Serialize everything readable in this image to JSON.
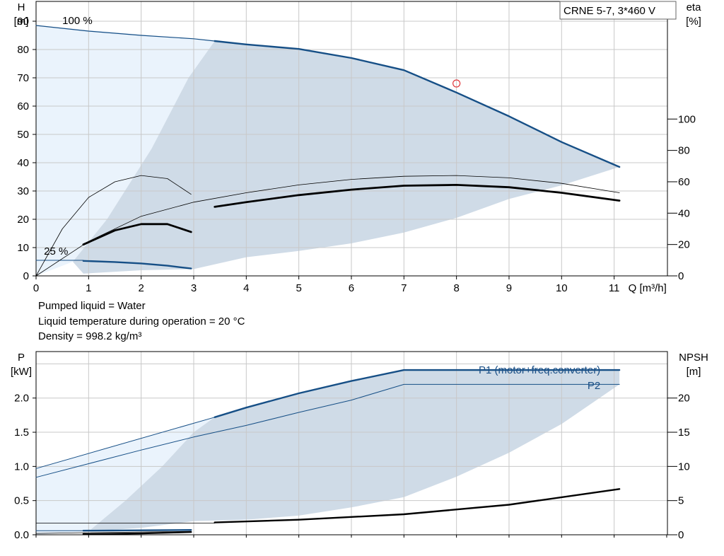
{
  "colors": {
    "area_light": "#eaf3fc",
    "area_mid": "#cfdbe7",
    "curve_blue": "#164f86",
    "grid": "#c8c8c8",
    "label_blue": "#1a4f86",
    "marker_red": "#e0383c"
  },
  "legend_box": {
    "text": "CRNE 5-7, 3*460 V"
  },
  "info_lines": [
    "Pumped liquid = Water",
    "Liquid temperature during operation = 20 °C",
    "Density = 998.2 kg/m³"
  ],
  "chart_data": [
    {
      "type": "line",
      "chart_id": "head_efficiency",
      "xlabel": "Q [m³/h]",
      "ylabel": "H\n[m]",
      "y2label": "eta\n[%]",
      "xlim": [
        0,
        12
      ],
      "ylim": [
        0,
        97
      ],
      "y2lim": [
        0,
        175
      ],
      "x_ticks": [
        0,
        1,
        2,
        3,
        4,
        5,
        6,
        7,
        8,
        9,
        10,
        11
      ],
      "y_ticks": [
        0,
        10,
        20,
        30,
        40,
        50,
        60,
        70,
        80,
        90
      ],
      "y2_ticks": [
        0,
        20,
        40,
        60,
        80,
        100
      ],
      "grid": true,
      "annotations": [
        {
          "text": "100 %",
          "x": 0.5,
          "y": 89
        },
        {
          "text": "25 %",
          "x": 0.15,
          "y": 7.5
        }
      ],
      "duty_point": {
        "x": 8.0,
        "y": 68
      },
      "regions": [
        {
          "name": "light",
          "points": [
            [
              0,
              88.5
            ],
            [
              3.4,
              83
            ],
            [
              2.9,
              70
            ],
            [
              2.2,
              45
            ],
            [
              1.35,
              20
            ],
            [
              0.7,
              5
            ],
            [
              0,
              0
            ]
          ]
        },
        {
          "name": "mid",
          "points": [
            [
              3.4,
              83
            ],
            [
              5,
              80.2
            ],
            [
              6,
              77
            ],
            [
              7,
              72.7
            ],
            [
              8,
              64.8
            ],
            [
              9,
              56.4
            ],
            [
              10,
              47.3
            ],
            [
              11.1,
              38.5
            ],
            [
              10,
              32
            ],
            [
              9,
              27.2
            ],
            [
              8,
              20.5
            ],
            [
              7,
              15.3
            ],
            [
              6,
              11.5
            ],
            [
              5,
              8.8
            ],
            [
              4,
              6.6
            ],
            [
              3,
              2.4
            ],
            [
              2,
              2
            ],
            [
              0.9,
              0.8
            ],
            [
              0.7,
              5
            ],
            [
              1.35,
              20
            ],
            [
              2.2,
              45
            ],
            [
              2.9,
              70
            ]
          ]
        }
      ],
      "series": [
        {
          "style": "head_thin",
          "x": [
            0,
            1,
            2,
            3,
            3.4
          ],
          "y": [
            88.5,
            86.5,
            85,
            83.8,
            83
          ]
        },
        {
          "style": "head_thick",
          "x": [
            3.4,
            4,
            5,
            6,
            7,
            8,
            9,
            10,
            11.1
          ],
          "y": [
            83,
            81.8,
            80.2,
            77,
            72.7,
            64.8,
            56.4,
            47.3,
            38.5
          ]
        },
        {
          "style": "head_low",
          "x": [
            0,
            0.9
          ],
          "y": [
            5.5,
            5.5
          ]
        },
        {
          "style": "head_low_thick",
          "x": [
            0.9,
            1.5,
            2,
            2.5,
            2.95
          ],
          "y": [
            5.3,
            4.9,
            4.4,
            3.6,
            2.6
          ]
        },
        {
          "style": "eta_thin",
          "axis": "y2",
          "x": [
            0,
            0.5,
            1,
            1.5,
            2,
            2.5,
            2.95
          ],
          "y": [
            0,
            30,
            50,
            60,
            64,
            62,
            52
          ]
        },
        {
          "style": "eta_thin",
          "axis": "y2",
          "x": [
            0,
            1,
            2,
            3,
            4,
            5,
            6,
            7,
            8,
            9,
            10,
            11.1
          ],
          "y": [
            0,
            22,
            38,
            47,
            53,
            58,
            61.5,
            63.5,
            64,
            62.5,
            59,
            53
          ]
        },
        {
          "style": "eta_thick",
          "axis": "y2",
          "x": [
            0.9,
            1.5,
            2,
            2.5,
            2.95
          ],
          "y": [
            20,
            29,
            33,
            33,
            28
          ]
        },
        {
          "style": "eta_thick",
          "axis": "y2",
          "x": [
            3.4,
            4,
            5,
            6,
            7,
            8,
            9,
            10,
            11.1
          ],
          "y": [
            44,
            47,
            51.5,
            55,
            57.5,
            58,
            56.5,
            53,
            48
          ]
        }
      ]
    },
    {
      "type": "line",
      "chart_id": "power_npsh",
      "xlabel": "",
      "ylabel": "P\n[kW]",
      "y2label": "NPSH\n[m]",
      "xlim": [
        0,
        12
      ],
      "ylim": [
        0,
        2.68
      ],
      "y2lim": [
        0,
        26.8
      ],
      "y_ticks": [
        0.0,
        0.5,
        1.0,
        1.5,
        2.0
      ],
      "y2_ticks": [
        0,
        5,
        10,
        15,
        20
      ],
      "grid": true,
      "series_labels": [
        {
          "text": "P1 (motor+freq.converter)",
          "x": 10.9,
          "y": 2.36
        },
        {
          "text": "P2",
          "x": 10.9,
          "y": 2.13
        }
      ],
      "regions": [
        {
          "name": "light",
          "points": [
            [
              0,
              0.97
            ],
            [
              3.4,
              1.72
            ],
            [
              3.0,
              1.5
            ],
            [
              2.4,
              1.0
            ],
            [
              1.7,
              0.5
            ],
            [
              1.0,
              0.05
            ],
            [
              0,
              0
            ]
          ]
        },
        {
          "name": "mid",
          "points": [
            [
              3.4,
              1.72
            ],
            [
              4,
              1.86
            ],
            [
              5,
              2.07
            ],
            [
              6,
              2.25
            ],
            [
              7,
              2.41
            ],
            [
              8,
              2.41
            ],
            [
              9,
              2.41
            ],
            [
              10,
              2.41
            ],
            [
              11.1,
              2.41
            ],
            [
              11.1,
              2.2
            ],
            [
              10,
              1.62
            ],
            [
              9,
              1.2
            ],
            [
              8,
              0.85
            ],
            [
              7,
              0.55
            ],
            [
              6,
              0.4
            ],
            [
              5,
              0.28
            ],
            [
              4,
              0.22
            ],
            [
              3,
              0.2
            ],
            [
              2,
              0.1
            ],
            [
              1,
              0.05
            ],
            [
              1.7,
              0.5
            ],
            [
              2.4,
              1.0
            ],
            [
              3.0,
              1.5
            ]
          ]
        }
      ],
      "series": [
        {
          "style": "p1_thin",
          "x": [
            0,
            3.4
          ],
          "y": [
            0.97,
            1.72
          ]
        },
        {
          "style": "p1_thick",
          "x": [
            3.4,
            4,
            5,
            6,
            7,
            8,
            9,
            10,
            11.1
          ],
          "y": [
            1.72,
            1.86,
            2.07,
            2.25,
            2.41,
            2.41,
            2.41,
            2.41,
            2.41
          ]
        },
        {
          "style": "p2_thin",
          "x": [
            0,
            1,
            2,
            3,
            4,
            5,
            6,
            7,
            8,
            9,
            10,
            11.1
          ],
          "y": [
            0.84,
            1.04,
            1.24,
            1.43,
            1.6,
            1.79,
            1.97,
            2.2,
            2.2,
            2.2,
            2.2,
            2.2
          ]
        },
        {
          "style": "low_thin",
          "x": [
            0,
            0.9
          ],
          "y": [
            0.06,
            0.06
          ]
        },
        {
          "style": "low_thick",
          "x": [
            0.9,
            2.95
          ],
          "y": [
            0.06,
            0.07
          ]
        },
        {
          "style": "npsh_thin",
          "axis": "y2",
          "x": [
            0,
            3.4
          ],
          "y": [
            1.7,
            1.7
          ]
        },
        {
          "style": "npsh_thin",
          "axis": "y2",
          "x": [
            0,
            0.9,
            2.95
          ],
          "y": [
            0.2,
            0.3,
            0.5
          ]
        },
        {
          "style": "npsh_thick",
          "axis": "y2",
          "x": [
            0.9,
            2.0,
            2.95
          ],
          "y": [
            0.1,
            0.2,
            0.4
          ]
        },
        {
          "style": "npsh_thick",
          "axis": "y2",
          "x": [
            3.4,
            5,
            7,
            9,
            11.1
          ],
          "y": [
            1.8,
            2.2,
            3.0,
            4.4,
            6.7
          ]
        }
      ]
    }
  ]
}
